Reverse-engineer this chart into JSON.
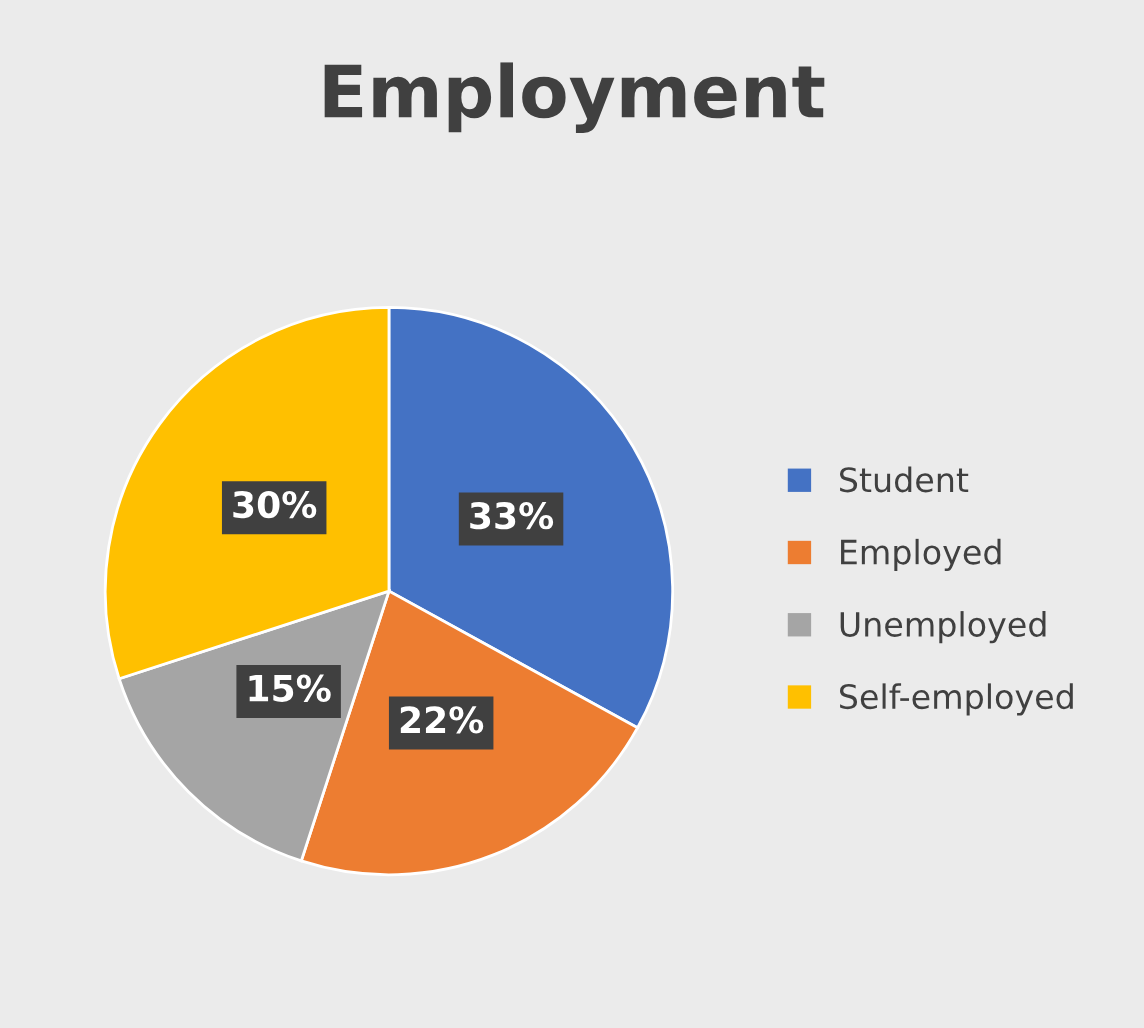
{
  "chart_data": {
    "type": "pie",
    "title": "Employment",
    "categories": [
      "Student",
      "Employed",
      "Unemployed",
      "Self-employed"
    ],
    "values": [
      33,
      22,
      15,
      30
    ],
    "colors": [
      "#4472c4",
      "#ed7d31",
      "#a5a5a5",
      "#ffc000"
    ],
    "value_labels": [
      "33%",
      "22%",
      "15%",
      "30%"
    ],
    "legend": "right"
  }
}
